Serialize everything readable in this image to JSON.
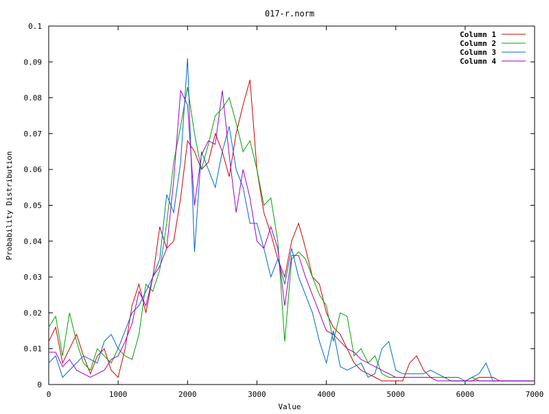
{
  "chart_data": {
    "type": "line",
    "title": "017-r.norm",
    "xlabel": "Value",
    "ylabel": "Probability Distribution",
    "xlim": [
      0,
      7000
    ],
    "ylim": [
      0,
      0.1
    ],
    "x_ticks": [
      0,
      1000,
      2000,
      3000,
      4000,
      5000,
      6000,
      7000
    ],
    "y_ticks": [
      0,
      0.01,
      0.02,
      0.03,
      0.04,
      0.05,
      0.06,
      0.07,
      0.08,
      0.09,
      0.1
    ],
    "x_tick_labels": [
      "0",
      "1000",
      "2000",
      "3000",
      "4000",
      "5000",
      "6000",
      "7000"
    ],
    "y_tick_labels": [
      "0",
      "0.01",
      "0.02",
      "0.03",
      "0.04",
      "0.05",
      "0.06",
      "0.07",
      "0.08",
      "0.09",
      "0.1"
    ],
    "grid": false,
    "legend_position": "top-right",
    "x": [
      0,
      100,
      200,
      300,
      400,
      500,
      600,
      700,
      800,
      900,
      1000,
      1100,
      1200,
      1300,
      1400,
      1500,
      1600,
      1700,
      1800,
      1900,
      2000,
      2100,
      2200,
      2300,
      2400,
      2500,
      2600,
      2700,
      2800,
      2900,
      3000,
      3100,
      3200,
      3300,
      3400,
      3500,
      3600,
      3700,
      3800,
      3900,
      4000,
      4100,
      4200,
      4300,
      4400,
      4500,
      4600,
      4700,
      4800,
      4900,
      5000,
      5100,
      5200,
      5300,
      5400,
      5500,
      5600,
      5700,
      5800,
      5900,
      6000,
      6100,
      6200,
      6300,
      6400,
      6500,
      6600,
      6700,
      6800,
      6900,
      7000
    ],
    "series": [
      {
        "name": "Column 1",
        "color": "#cc0000",
        "values": [
          0.012,
          0.016,
          0.006,
          0.01,
          0.014,
          0.008,
          0.003,
          0.008,
          0.01,
          0.004,
          0.002,
          0.01,
          0.022,
          0.028,
          0.02,
          0.03,
          0.044,
          0.038,
          0.04,
          0.052,
          0.068,
          0.065,
          0.06,
          0.062,
          0.07,
          0.065,
          0.058,
          0.07,
          0.078,
          0.085,
          0.06,
          0.048,
          0.042,
          0.035,
          0.03,
          0.04,
          0.045,
          0.038,
          0.03,
          0.028,
          0.02,
          0.016,
          0.014,
          0.01,
          0.006,
          0.004,
          0.003,
          0.002,
          0.001,
          0.001,
          0.001,
          0.001,
          0.006,
          0.008,
          0.004,
          0.002,
          0.002,
          0.002,
          0.001,
          0.001,
          0.001,
          0.001,
          0.002,
          0.002,
          0.002,
          0.001,
          0.001,
          0.001,
          0.001,
          0.001,
          0.001
        ]
      },
      {
        "name": "Column 2",
        "color": "#00a000",
        "values": [
          0.016,
          0.019,
          0.008,
          0.02,
          0.012,
          0.006,
          0.004,
          0.01,
          0.008,
          0.006,
          0.01,
          0.008,
          0.007,
          0.014,
          0.028,
          0.026,
          0.032,
          0.045,
          0.062,
          0.072,
          0.083,
          0.07,
          0.06,
          0.067,
          0.075,
          0.077,
          0.08,
          0.073,
          0.065,
          0.068,
          0.06,
          0.05,
          0.052,
          0.04,
          0.012,
          0.035,
          0.037,
          0.035,
          0.03,
          0.025,
          0.022,
          0.012,
          0.02,
          0.019,
          0.008,
          0.01,
          0.006,
          0.008,
          0.003,
          0.002,
          0.002,
          0.002,
          0.002,
          0.002,
          0.002,
          0.002,
          0.002,
          0.002,
          0.001,
          0.001,
          0.001,
          0.002,
          0.001,
          0.001,
          0.001,
          0.001,
          0.001,
          0.001,
          0.001,
          0.001,
          0.001
        ]
      },
      {
        "name": "Column 3",
        "color": "#0066cc",
        "values": [
          0.006,
          0.008,
          0.002,
          0.004,
          0.006,
          0.008,
          0.007,
          0.006,
          0.012,
          0.014,
          0.01,
          0.015,
          0.02,
          0.022,
          0.026,
          0.03,
          0.035,
          0.053,
          0.048,
          0.062,
          0.091,
          0.037,
          0.065,
          0.06,
          0.055,
          0.065,
          0.072,
          0.06,
          0.055,
          0.045,
          0.045,
          0.038,
          0.03,
          0.035,
          0.028,
          0.038,
          0.03,
          0.025,
          0.02,
          0.012,
          0.006,
          0.015,
          0.005,
          0.004,
          0.005,
          0.006,
          0.002,
          0.003,
          0.01,
          0.012,
          0.004,
          0.003,
          0.003,
          0.003,
          0.003,
          0.004,
          0.003,
          0.002,
          0.002,
          0.002,
          0.001,
          0.002,
          0.003,
          0.006,
          0.001,
          0.001,
          0.001,
          0.001,
          0.001,
          0.001,
          0.001
        ]
      },
      {
        "name": "Column 4",
        "color": "#9900cc",
        "values": [
          0.009,
          0.009,
          0.005,
          0.007,
          0.004,
          0.003,
          0.002,
          0.003,
          0.004,
          0.007,
          0.008,
          0.012,
          0.017,
          0.026,
          0.022,
          0.03,
          0.033,
          0.038,
          0.057,
          0.082,
          0.078,
          0.05,
          0.064,
          0.068,
          0.067,
          0.082,
          0.064,
          0.048,
          0.06,
          0.052,
          0.04,
          0.038,
          0.044,
          0.038,
          0.022,
          0.036,
          0.036,
          0.03,
          0.025,
          0.02,
          0.015,
          0.014,
          0.012,
          0.01,
          0.009,
          0.007,
          0.006,
          0.005,
          0.004,
          0.003,
          0.002,
          0.002,
          0.002,
          0.002,
          0.002,
          0.002,
          0.001,
          0.001,
          0.001,
          0.001,
          0.001,
          0.001,
          0.001,
          0.001,
          0.001,
          0.001,
          0.001,
          0.001,
          0.001,
          0.001,
          0.001
        ]
      }
    ]
  }
}
